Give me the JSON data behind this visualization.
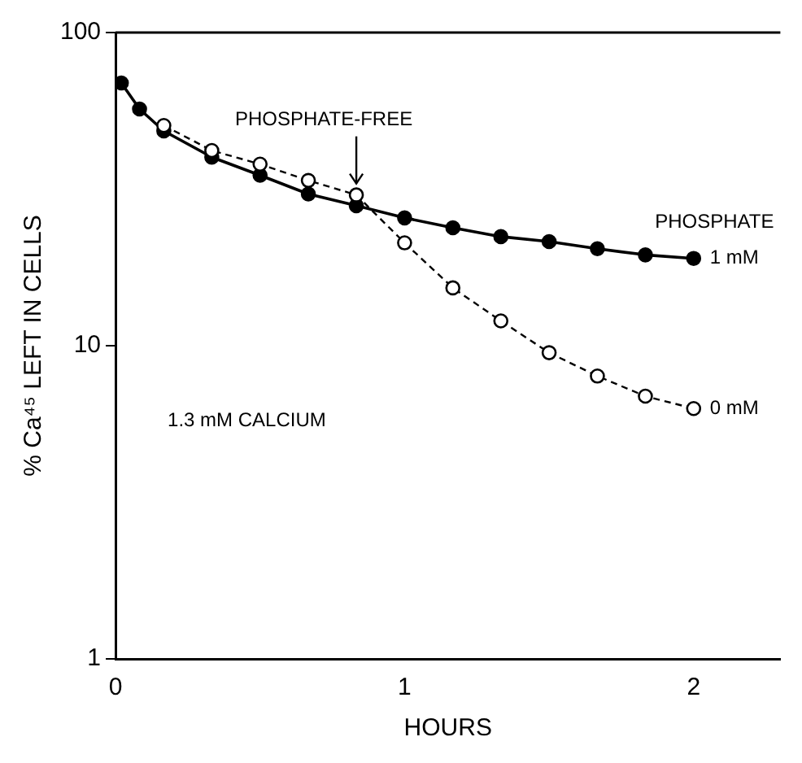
{
  "chart_data": {
    "type": "line",
    "xlabel": "HOURS",
    "ylabel": "% Ca⁴⁵ LEFT IN CELLS",
    "log": "y",
    "xlim": [
      0,
      2.3
    ],
    "xticks": [
      0,
      1,
      2
    ],
    "ylim": [
      1,
      100
    ],
    "yticks": [
      1,
      10,
      100
    ],
    "grid": false,
    "legend": false,
    "marker": "circle",
    "series": [
      {
        "name": "1 mM",
        "color": "#000000",
        "line_style": "solid",
        "x": [
          0.02,
          0.083,
          0.167,
          0.333,
          0.5,
          0.667,
          0.833,
          1.0,
          1.167,
          1.333,
          1.5,
          1.667,
          1.833,
          2.0
        ],
        "values": [
          69,
          57,
          48.5,
          40,
          35,
          30.5,
          28,
          25.6,
          23.8,
          22.3,
          21.5,
          20.4,
          19.5,
          19
        ]
      },
      {
        "name": "0 mM",
        "color": "#000000",
        "line_style": "dashed",
        "x": [
          0.167,
          0.333,
          0.5,
          0.667,
          0.833,
          1.0,
          1.167,
          1.333,
          1.5,
          1.667,
          1.833,
          2.0
        ],
        "values": [
          50.5,
          42,
          38,
          33.7,
          30.3,
          21.3,
          15.3,
          12,
          9.5,
          8,
          6.9,
          6.3
        ]
      }
    ],
    "annotations": [
      {
        "text": "PHOSPHATE-FREE",
        "x": 0.833,
        "y": 30.3
      },
      "PHOSPHATE",
      "1.3 mM CALCIUM"
    ]
  }
}
